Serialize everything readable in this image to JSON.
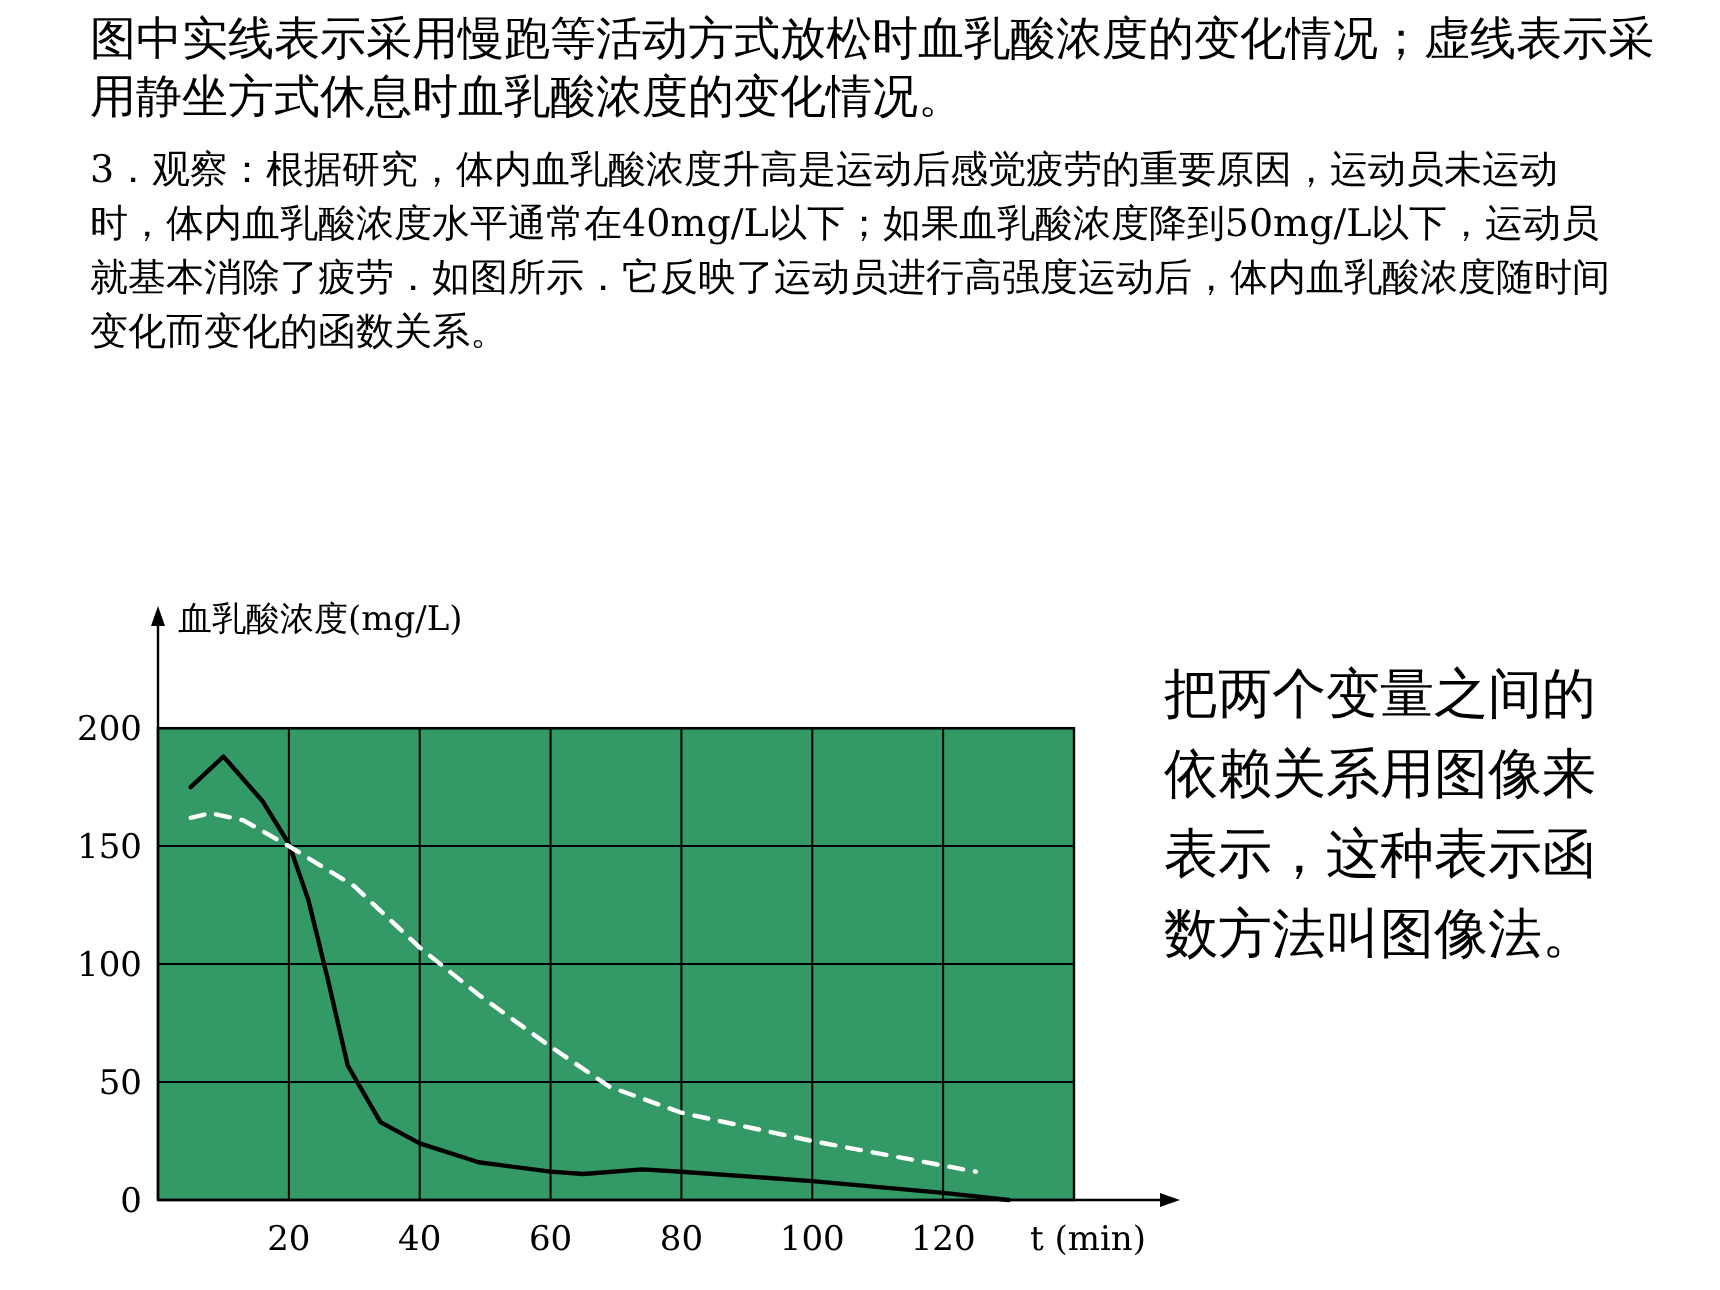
{
  "chart_data": {
    "type": "line",
    "title": "图中实线表示采用慢跑等活动方式放松时血乳酸浓度的变化情况；虚线表示采用静坐方式休息时血乳酸浓度的变化情况。",
    "annotations": [
      "3．观察：根据研究，体内血乳酸浓度升高是运动后感觉疲劳的重要原因，运动员未运动时，体内血乳酸浓度水平通常在40mg/L以下；如果血乳酸浓度降到50mg/L以下，运动员就基本消除了疲劳．如图所示．它反映了运动员进行高强度运动后，体内血乳酸浓度随时间变化而变化的函数关系。",
      "把两个变量之间的依赖关系用图像来表示，这种表示函数方法叫图像法。"
    ],
    "xlabel": "t  (min)",
    "ylabel": "血乳酸浓度(mg/L)",
    "xlim": [
      0,
      140
    ],
    "ylim": [
      0,
      245
    ],
    "xticks": [
      20,
      40,
      60,
      80,
      100,
      120
    ],
    "yticks": [
      0,
      50,
      100,
      150,
      200
    ],
    "grid": true,
    "bands": [
      {
        "axis": "y",
        "from": 0,
        "to": 200,
        "color": "#339966"
      }
    ],
    "series": [
      {
        "color": "#000000",
        "line_style": "solid",
        "x": [
          5,
          10,
          16,
          20,
          23,
          26,
          29,
          34,
          40,
          49,
          60,
          65,
          74,
          80,
          100,
          120,
          130
        ],
        "values": [
          175,
          188,
          169,
          151,
          127,
          93,
          57,
          33,
          24,
          16,
          12,
          11,
          13,
          12,
          8,
          3,
          0
        ]
      },
      {
        "color": "#ffffff",
        "line_style": "dashed",
        "x": [
          5,
          8,
          13,
          20,
          30,
          40,
          49,
          60,
          69,
          80,
          100,
          125
        ],
        "values": [
          162,
          164,
          161,
          150,
          133,
          107,
          87,
          65,
          48,
          37,
          25,
          12
        ]
      }
    ]
  }
}
